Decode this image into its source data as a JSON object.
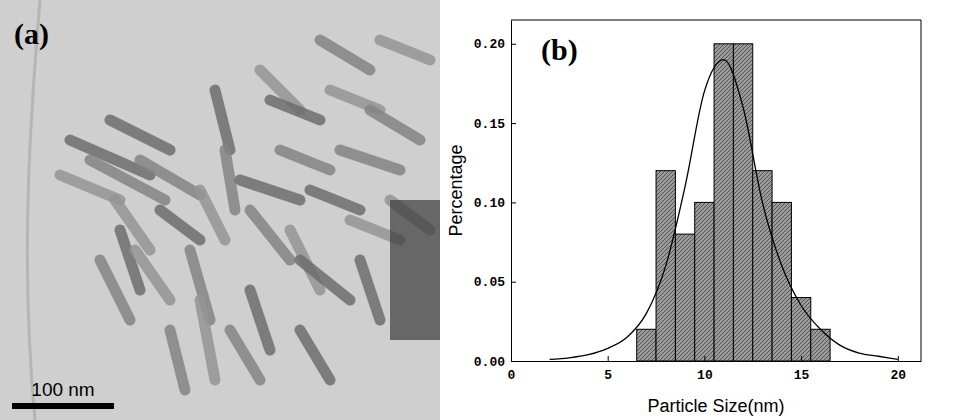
{
  "image_panel": {
    "label": "(a)",
    "scale_bar": "100 nm"
  },
  "chart_data": {
    "type": "histogram",
    "title": "(b)",
    "x_label": "Particle Size(nm)",
    "y_label": "Percentage",
    "bins": [
      6.5,
      7.5,
      8.5,
      9.5,
      10.5,
      11.5,
      12.5,
      13.5,
      14.5,
      15.5,
      16.5
    ],
    "values": [
      0.02,
      0.12,
      0.08,
      0.1,
      0.2,
      0.2,
      0.12,
      0.1,
      0.04,
      0.02
    ],
    "color": "#9a9a9a",
    "curve": {
      "type": "line",
      "color": "#000000",
      "x": [
        2,
        3,
        4,
        5,
        6,
        7,
        8,
        9,
        10,
        11,
        12,
        13,
        14,
        15,
        16,
        17,
        18,
        19,
        20
      ],
      "values": [
        0.001,
        0.002,
        0.004,
        0.008,
        0.015,
        0.03,
        0.06,
        0.11,
        0.17,
        0.19,
        0.16,
        0.1,
        0.06,
        0.035,
        0.02,
        0.01,
        0.005,
        0.003,
        0.001
      ]
    },
    "xlim": [
      0,
      21.2
    ],
    "ylim": [
      0,
      0.215
    ],
    "xticks": [
      0,
      5,
      10,
      15,
      20
    ],
    "yticks": [
      {
        "value": 0,
        "label": "0.00"
      },
      {
        "value": 0.05,
        "label": "0.05"
      },
      {
        "value": 0.1,
        "label": "0.10"
      },
      {
        "value": 0.15,
        "label": "0.15"
      },
      {
        "value": 0.2,
        "label": "0.20"
      }
    ],
    "grid": false
  }
}
